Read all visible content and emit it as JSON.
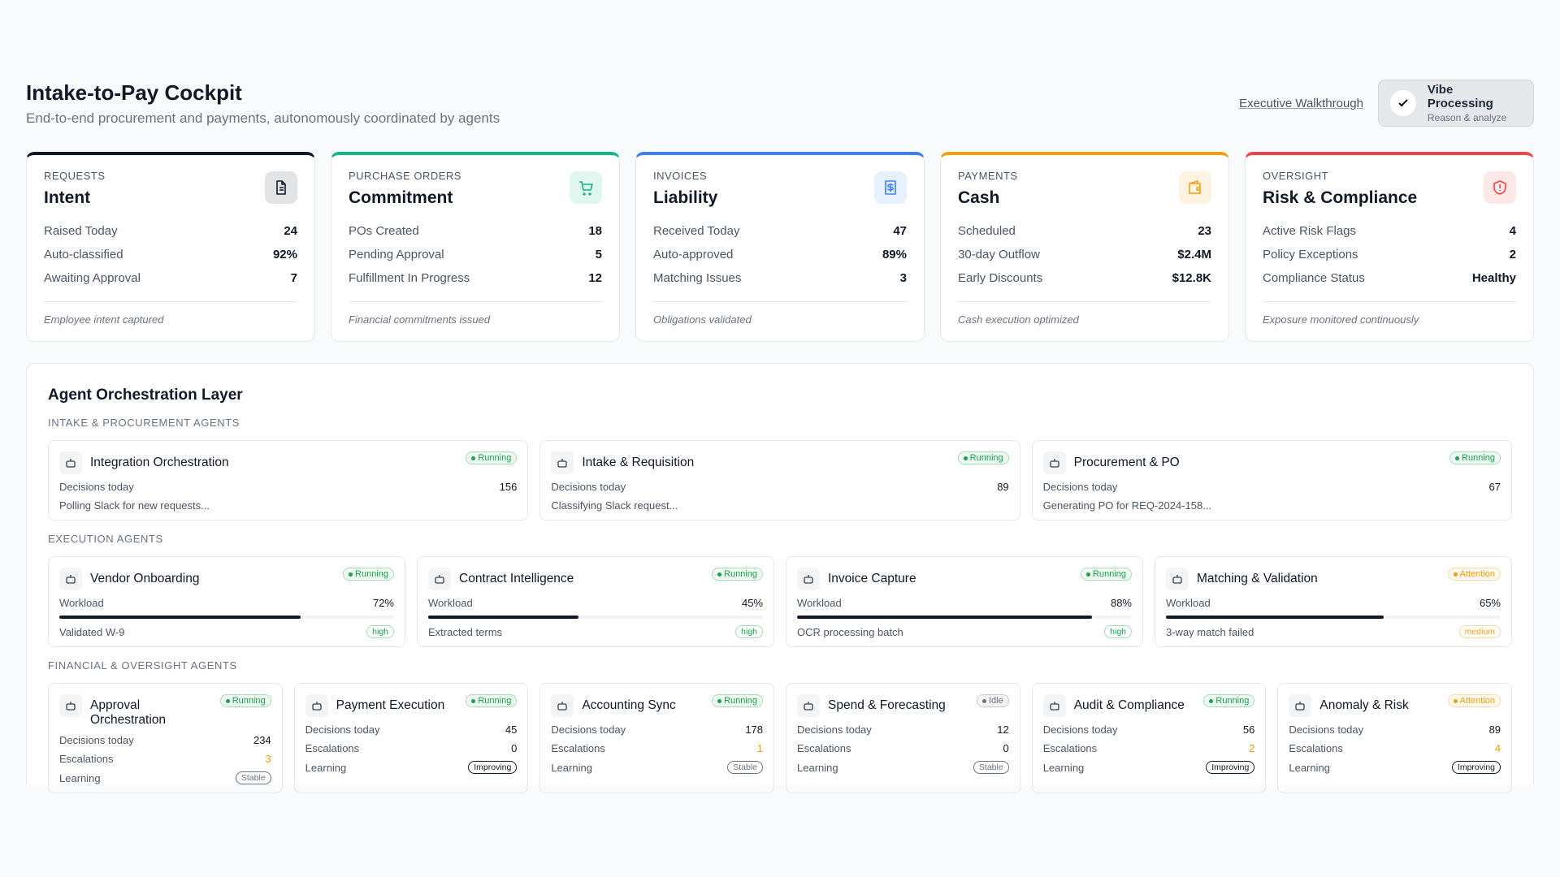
{
  "header": {
    "title": "Intake-to-Pay Cockpit",
    "subtitle": "End-to-end procurement and payments, autonomously coordinated by agents",
    "walkthrough_link": "Executive Walkthrough",
    "mode_button": {
      "title": "Vibe Processing",
      "subtitle": "Reason & analyze"
    }
  },
  "stages": [
    {
      "label": "REQUESTS",
      "title": "Intent",
      "accent": "#111827",
      "metrics": [
        {
          "label": "Raised Today",
          "value": "24"
        },
        {
          "label": "Auto-classified",
          "value": "92%"
        },
        {
          "label": "Awaiting Approval",
          "value": "7"
        }
      ],
      "footer": "Employee intent captured"
    },
    {
      "label": "PURCHASE ORDERS",
      "title": "Commitment",
      "accent": "#10b981",
      "metrics": [
        {
          "label": "POs Created",
          "value": "18"
        },
        {
          "label": "Pending Approval",
          "value": "5"
        },
        {
          "label": "Fulfillment In Progress",
          "value": "12"
        }
      ],
      "footer": "Financial commitments issued"
    },
    {
      "label": "INVOICES",
      "title": "Liability",
      "accent": "#3b82f6",
      "metrics": [
        {
          "label": "Received Today",
          "value": "47"
        },
        {
          "label": "Auto-approved",
          "value": "89%"
        },
        {
          "label": "Matching Issues",
          "value": "3"
        }
      ],
      "footer": "Obligations validated"
    },
    {
      "label": "PAYMENTS",
      "title": "Cash",
      "accent": "#f59e0b",
      "metrics": [
        {
          "label": "Scheduled",
          "value": "23"
        },
        {
          "label": "30-day Outflow",
          "value": "$2.4M"
        },
        {
          "label": "Early Discounts",
          "value": "$12.8K"
        }
      ],
      "footer": "Cash execution optimized"
    },
    {
      "label": "OVERSIGHT",
      "title": "Risk & Compliance",
      "accent": "#ef4444",
      "metrics": [
        {
          "label": "Active Risk Flags",
          "value": "4"
        },
        {
          "label": "Policy Exceptions",
          "value": "2"
        },
        {
          "label": "Compliance Status",
          "value": "Healthy"
        }
      ],
      "footer": "Exposure monitored continuously"
    }
  ],
  "orchestration": {
    "title": "Agent Orchestration Layer",
    "groups": [
      {
        "label": "INTAKE & PROCUREMENT AGENTS",
        "agents": [
          {
            "name": "Integration Orchestration",
            "status": "Running",
            "status_color": "#16a34a",
            "metric_label": "Decisions today",
            "metric_value": "156",
            "activity": "Polling Slack for new requests..."
          },
          {
            "name": "Intake & Requisition",
            "status": "Running",
            "status_color": "#16a34a",
            "metric_label": "Decisions today",
            "metric_value": "89",
            "activity": "Classifying Slack request..."
          },
          {
            "name": "Procurement & PO",
            "status": "Running",
            "status_color": "#16a34a",
            "metric_label": "Decisions today",
            "metric_value": "67",
            "activity": "Generating PO for REQ-2024-158..."
          }
        ]
      },
      {
        "label": "EXECUTION AGENTS",
        "agents": [
          {
            "name": "Vendor Onboarding",
            "status": "Running",
            "status_color": "#16a34a",
            "workload_label": "Workload",
            "workload": {
              "value": 72,
              "label": "72%"
            },
            "activity": "Validated W-9",
            "priority": "high",
            "priority_color": "#16a34a"
          },
          {
            "name": "Contract Intelligence",
            "status": "Running",
            "status_color": "#16a34a",
            "workload_label": "Workload",
            "workload": {
              "value": 45,
              "label": "45%"
            },
            "activity": "Extracted terms",
            "priority": "high",
            "priority_color": "#16a34a"
          },
          {
            "name": "Invoice Capture",
            "status": "Running",
            "status_color": "#16a34a",
            "workload_label": "Workload",
            "workload": {
              "value": 88,
              "label": "88%"
            },
            "activity": "OCR processing batch",
            "priority": "high",
            "priority_color": "#16a34a"
          },
          {
            "name": "Matching & Validation",
            "status": "Attention",
            "status_color": "#f59e0b",
            "workload_label": "Workload",
            "workload": {
              "value": 65,
              "label": "65%"
            },
            "activity": "3-way match failed",
            "priority": "medium",
            "priority_color": "#f59e0b"
          }
        ]
      },
      {
        "label": "FINANCIAL & OVERSIGHT AGENTS",
        "agents": [
          {
            "name": "Approval Orchestration",
            "status": "Running",
            "status_color": "#16a34a",
            "decisions_label": "Decisions today",
            "decisions": "234",
            "escalations_label": "Escalations",
            "escalations": "3",
            "learning_label": "Learning",
            "learning": "Stable",
            "learning_color": "#6b7280"
          },
          {
            "name": "Payment Execution",
            "status": "Running",
            "status_color": "#16a34a",
            "decisions_label": "Decisions today",
            "decisions": "45",
            "escalations_label": "Escalations",
            "escalations": "0",
            "learning_label": "Learning",
            "learning": "Improving",
            "learning_color": "#111827"
          },
          {
            "name": "Accounting Sync",
            "status": "Running",
            "status_color": "#16a34a",
            "decisions_label": "Decisions today",
            "decisions": "178",
            "escalations_label": "Escalations",
            "escalations": "1",
            "learning_label": "Learning",
            "learning": "Stable",
            "learning_color": "#6b7280"
          },
          {
            "name": "Spend & Forecasting",
            "status": "Idle",
            "status_color": "#6b7280",
            "decisions_label": "Decisions today",
            "decisions": "12",
            "escalations_label": "Escalations",
            "escalations": "0",
            "learning_label": "Learning",
            "learning": "Stable",
            "learning_color": "#6b7280"
          },
          {
            "name": "Audit & Compliance",
            "status": "Running",
            "status_color": "#16a34a",
            "decisions_label": "Decisions today",
            "decisions": "56",
            "escalations_label": "Escalations",
            "escalations": "2",
            "learning_label": "Learning",
            "learning": "Improving",
            "learning_color": "#111827"
          },
          {
            "name": "Anomaly & Risk",
            "status": "Attention",
            "status_color": "#f59e0b",
            "decisions_label": "Decisions today",
            "decisions": "89",
            "escalations_label": "Escalations",
            "escalations": "4",
            "learning_label": "Learning",
            "learning": "Improving",
            "learning_color": "#111827"
          }
        ]
      }
    ]
  }
}
